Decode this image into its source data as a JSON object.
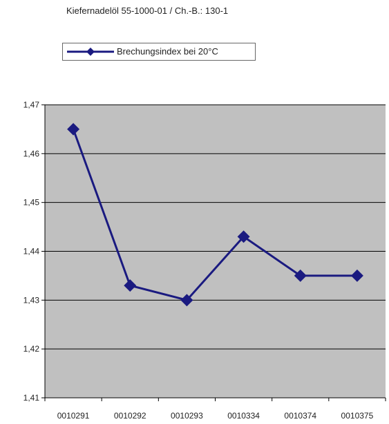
{
  "chart_data": {
    "type": "line",
    "title": "Kiefernadelöl 55-1000-01 / Ch.-B.: 130-1",
    "categories": [
      "0010291",
      "0010292",
      "0010293",
      "0010334",
      "0010374",
      "0010375"
    ],
    "series": [
      {
        "name": "Brechungsindex bei 20°C",
        "values": [
          1.465,
          1.433,
          1.43,
          1.443,
          1.435,
          1.435
        ]
      }
    ],
    "ylim": [
      1.41,
      1.47
    ],
    "yticks": [
      "1,47",
      "1,46",
      "1,45",
      "1,44",
      "1,43",
      "1,42",
      "1,41"
    ],
    "ytick_values": [
      1.47,
      1.46,
      1.45,
      1.44,
      1.43,
      1.42,
      1.41
    ],
    "grid": true,
    "legend_position": "top-left",
    "colors": {
      "series": "#1a1a80",
      "plot_background": "#c0c0c0",
      "gridline": "#000000"
    }
  }
}
